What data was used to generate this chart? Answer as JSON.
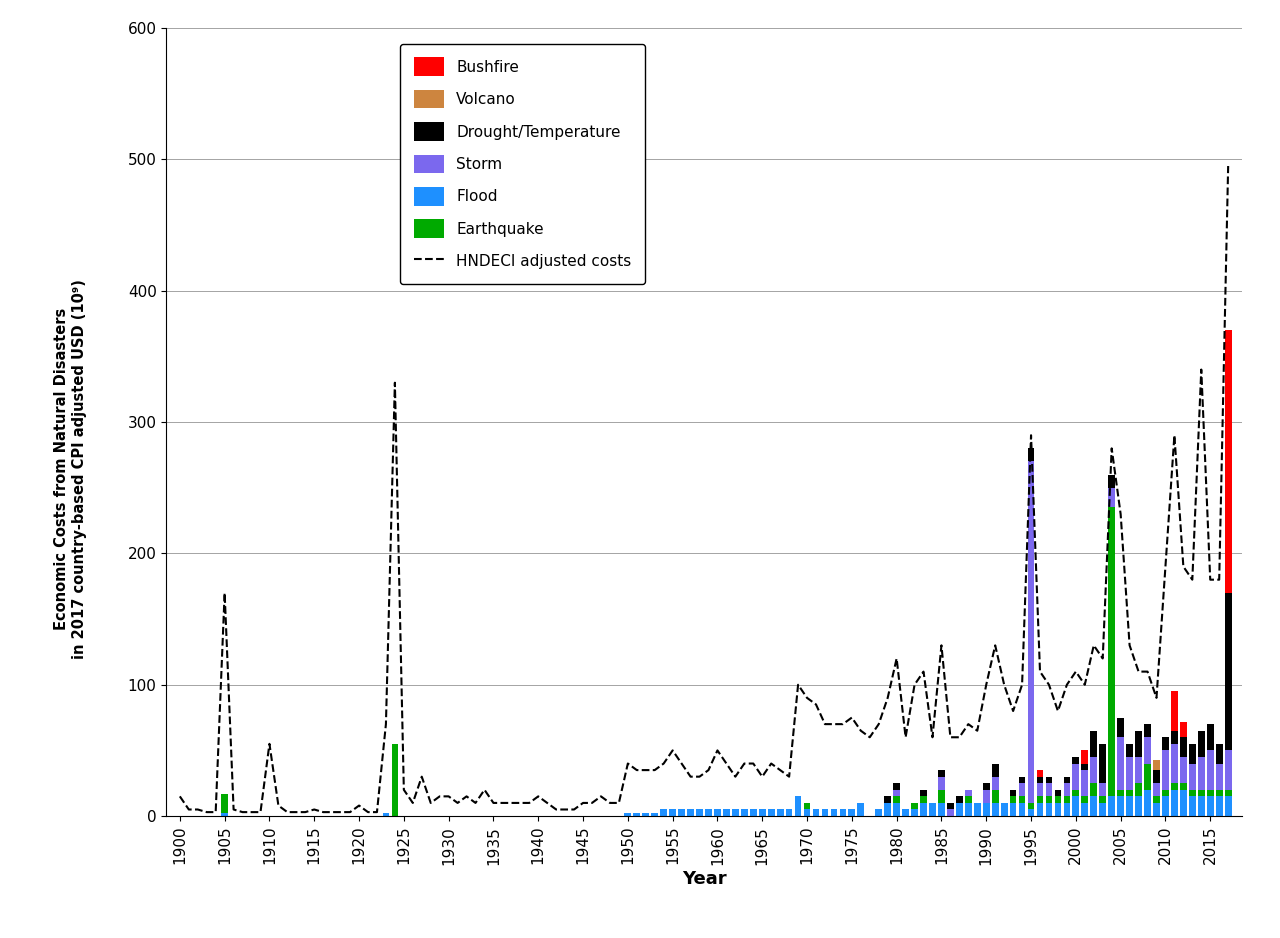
{
  "xlabel": "Year",
  "ylabel": "Economic Costs from Natural Disasters\nin 2017 country-based CPI adjusted USD (10⁹)",
  "ylim": [
    0,
    600
  ],
  "yticks": [
    0,
    100,
    200,
    300,
    400,
    500,
    600
  ],
  "colors": {
    "bushfire": "#FF0000",
    "volcano": "#CD853F",
    "drought": "#000000",
    "storm": "#7B68EE",
    "flood": "#1E90FF",
    "earthquake": "#00AA00"
  },
  "years": [
    1900,
    1901,
    1902,
    1903,
    1904,
    1905,
    1906,
    1907,
    1908,
    1909,
    1910,
    1911,
    1912,
    1913,
    1914,
    1915,
    1916,
    1917,
    1918,
    1919,
    1920,
    1921,
    1922,
    1923,
    1924,
    1925,
    1926,
    1927,
    1928,
    1929,
    1930,
    1931,
    1932,
    1933,
    1934,
    1935,
    1936,
    1937,
    1938,
    1939,
    1940,
    1941,
    1942,
    1943,
    1944,
    1945,
    1946,
    1947,
    1948,
    1949,
    1950,
    1951,
    1952,
    1953,
    1954,
    1955,
    1956,
    1957,
    1958,
    1959,
    1960,
    1961,
    1962,
    1963,
    1964,
    1965,
    1966,
    1967,
    1968,
    1969,
    1970,
    1971,
    1972,
    1973,
    1974,
    1975,
    1976,
    1977,
    1978,
    1979,
    1980,
    1981,
    1982,
    1983,
    1984,
    1985,
    1986,
    1987,
    1988,
    1989,
    1990,
    1991,
    1992,
    1993,
    1994,
    1995,
    1996,
    1997,
    1998,
    1999,
    2000,
    2001,
    2002,
    2003,
    2004,
    2005,
    2006,
    2007,
    2008,
    2009,
    2010,
    2011,
    2012,
    2013,
    2014,
    2015,
    2016,
    2017
  ],
  "bushfire": [
    0,
    0,
    0,
    0,
    0,
    0,
    0,
    0,
    0,
    0,
    0,
    0,
    0,
    0,
    0,
    0,
    0,
    0,
    0,
    0,
    0,
    0,
    0,
    0,
    0,
    0,
    0,
    0,
    0,
    0,
    0,
    0,
    0,
    0,
    0,
    0,
    0,
    0,
    0,
    0,
    0,
    0,
    0,
    0,
    0,
    0,
    0,
    0,
    0,
    0,
    0,
    0,
    0,
    0,
    0,
    0,
    0,
    0,
    0,
    0,
    0,
    0,
    0,
    0,
    0,
    0,
    0,
    0,
    0,
    0,
    0,
    0,
    0,
    0,
    0,
    0,
    0,
    0,
    0,
    0,
    0,
    0,
    0,
    0,
    0,
    0,
    0,
    0,
    0,
    0,
    0,
    0,
    0,
    0,
    0,
    0,
    5,
    0,
    0,
    0,
    0,
    10,
    0,
    0,
    0,
    0,
    0,
    0,
    0,
    0,
    0,
    30,
    12,
    0,
    0,
    0,
    0,
    200
  ],
  "volcano": [
    0,
    0,
    0,
    0,
    0,
    0,
    0,
    0,
    0,
    0,
    0,
    0,
    0,
    0,
    0,
    0,
    0,
    0,
    0,
    0,
    0,
    0,
    0,
    0,
    0,
    0,
    0,
    0,
    0,
    0,
    0,
    0,
    0,
    0,
    0,
    0,
    0,
    0,
    0,
    0,
    0,
    0,
    0,
    0,
    0,
    0,
    0,
    0,
    0,
    0,
    0,
    0,
    0,
    0,
    0,
    0,
    0,
    0,
    0,
    0,
    0,
    0,
    0,
    0,
    0,
    0,
    0,
    0,
    0,
    0,
    0,
    0,
    0,
    0,
    0,
    0,
    0,
    0,
    0,
    0,
    0,
    0,
    0,
    0,
    0,
    0,
    0,
    0,
    0,
    0,
    0,
    0,
    0,
    0,
    0,
    0,
    0,
    0,
    0,
    0,
    0,
    0,
    0,
    0,
    0,
    0,
    0,
    0,
    0,
    8,
    0,
    0,
    0,
    0,
    0,
    0,
    0,
    0
  ],
  "drought": [
    0,
    0,
    0,
    0,
    0,
    0,
    0,
    0,
    0,
    0,
    0,
    0,
    0,
    0,
    0,
    0,
    0,
    0,
    0,
    0,
    0,
    0,
    0,
    0,
    0,
    0,
    0,
    0,
    0,
    0,
    0,
    0,
    0,
    0,
    0,
    0,
    0,
    0,
    0,
    0,
    0,
    0,
    0,
    0,
    0,
    0,
    0,
    0,
    0,
    0,
    0,
    0,
    0,
    0,
    0,
    0,
    0,
    0,
    0,
    0,
    0,
    0,
    0,
    0,
    0,
    0,
    0,
    0,
    0,
    0,
    0,
    0,
    0,
    0,
    0,
    0,
    0,
    0,
    0,
    5,
    5,
    0,
    0,
    5,
    0,
    5,
    5,
    5,
    0,
    0,
    5,
    10,
    0,
    5,
    5,
    10,
    5,
    5,
    5,
    5,
    5,
    5,
    20,
    30,
    10,
    15,
    10,
    20,
    10,
    10,
    10,
    10,
    15,
    15,
    20,
    20,
    15,
    120
  ],
  "storm": [
    0,
    0,
    0,
    0,
    0,
    0,
    0,
    0,
    0,
    0,
    0,
    0,
    0,
    0,
    0,
    0,
    0,
    0,
    0,
    0,
    0,
    0,
    0,
    0,
    0,
    0,
    0,
    0,
    0,
    0,
    0,
    0,
    0,
    0,
    0,
    0,
    0,
    0,
    0,
    0,
    0,
    0,
    0,
    0,
    0,
    0,
    0,
    0,
    0,
    0,
    0,
    0,
    0,
    0,
    0,
    0,
    0,
    0,
    0,
    0,
    0,
    0,
    0,
    0,
    0,
    0,
    0,
    0,
    0,
    0,
    0,
    0,
    0,
    0,
    0,
    0,
    0,
    0,
    0,
    0,
    5,
    0,
    0,
    0,
    0,
    10,
    5,
    0,
    5,
    0,
    10,
    10,
    0,
    0,
    10,
    260,
    10,
    10,
    0,
    10,
    20,
    20,
    20,
    10,
    15,
    40,
    25,
    20,
    20,
    10,
    30,
    30,
    20,
    20,
    25,
    30,
    20,
    30
  ],
  "flood": [
    0,
    0,
    0,
    0,
    0,
    2,
    0,
    0,
    0,
    0,
    0,
    0,
    0,
    0,
    0,
    0,
    0,
    0,
    0,
    0,
    0,
    0,
    0,
    2,
    0,
    0,
    0,
    0,
    0,
    0,
    0,
    0,
    0,
    0,
    0,
    0,
    0,
    0,
    0,
    0,
    0,
    0,
    0,
    0,
    0,
    0,
    0,
    0,
    0,
    0,
    2,
    2,
    2,
    2,
    5,
    5,
    5,
    5,
    5,
    5,
    5,
    5,
    5,
    5,
    5,
    5,
    5,
    5,
    5,
    15,
    5,
    5,
    5,
    5,
    5,
    5,
    10,
    0,
    5,
    10,
    10,
    5,
    5,
    10,
    10,
    10,
    0,
    10,
    10,
    10,
    10,
    10,
    10,
    10,
    10,
    5,
    10,
    10,
    10,
    10,
    15,
    10,
    15,
    10,
    15,
    15,
    15,
    15,
    20,
    10,
    15,
    20,
    20,
    15,
    15,
    15,
    15,
    15
  ],
  "earthquake": [
    0,
    0,
    0,
    0,
    0,
    15,
    0,
    0,
    0,
    0,
    0,
    0,
    0,
    0,
    0,
    0,
    0,
    0,
    0,
    0,
    0,
    0,
    0,
    0,
    55,
    0,
    0,
    0,
    0,
    0,
    0,
    0,
    0,
    0,
    0,
    0,
    0,
    0,
    0,
    0,
    0,
    0,
    0,
    0,
    0,
    0,
    0,
    0,
    0,
    0,
    0,
    0,
    0,
    0,
    0,
    0,
    0,
    0,
    0,
    0,
    0,
    0,
    0,
    0,
    0,
    0,
    0,
    0,
    0,
    0,
    5,
    0,
    0,
    0,
    0,
    0,
    0,
    0,
    0,
    0,
    5,
    0,
    5,
    5,
    0,
    10,
    0,
    0,
    5,
    0,
    0,
    10,
    0,
    5,
    5,
    5,
    5,
    5,
    5,
    5,
    5,
    5,
    10,
    5,
    220,
    5,
    5,
    10,
    20,
    5,
    5,
    5,
    5,
    5,
    5,
    5,
    5,
    5
  ],
  "hndeci": [
    15,
    5,
    5,
    3,
    3,
    170,
    5,
    3,
    3,
    3,
    55,
    8,
    3,
    3,
    3,
    5,
    3,
    3,
    3,
    3,
    8,
    3,
    3,
    70,
    330,
    20,
    10,
    30,
    10,
    15,
    15,
    10,
    15,
    10,
    20,
    10,
    10,
    10,
    10,
    10,
    15,
    10,
    5,
    5,
    5,
    10,
    10,
    15,
    10,
    10,
    40,
    35,
    35,
    35,
    40,
    50,
    40,
    30,
    30,
    35,
    50,
    40,
    30,
    40,
    40,
    30,
    40,
    35,
    30,
    100,
    90,
    85,
    70,
    70,
    70,
    75,
    65,
    60,
    70,
    90,
    120,
    60,
    100,
    110,
    60,
    130,
    60,
    60,
    70,
    65,
    100,
    130,
    100,
    80,
    100,
    290,
    110,
    100,
    80,
    100,
    110,
    100,
    130,
    120,
    280,
    230,
    130,
    110,
    110,
    90,
    190,
    290,
    190,
    180,
    340,
    180,
    180,
    495
  ]
}
